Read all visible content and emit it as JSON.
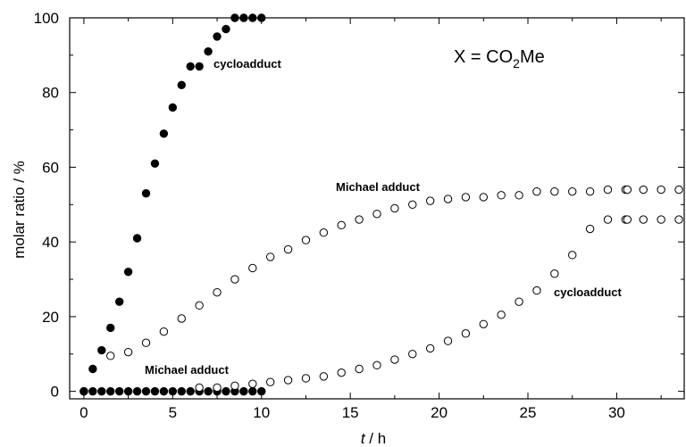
{
  "chart_data": {
    "type": "scatter",
    "title": "",
    "xlabel_italic": "t",
    "xlabel_rest": " / h",
    "ylabel": "molar ratio / %",
    "xlim": [
      -0.8,
      33.8
    ],
    "ylim": [
      -2,
      100
    ],
    "xticks": [
      0,
      5,
      10,
      15,
      20,
      25,
      30
    ],
    "yticks": [
      0,
      20,
      40,
      60,
      80,
      100
    ],
    "formula": {
      "prefix": "X = CO",
      "sub": "2",
      "suffix": "Me"
    },
    "annotations": {
      "cyclo_top": "cycloadduct",
      "michael_top": "Michael adduct",
      "cyclo_bottom": "cycloadduct",
      "michael_bottom": "Michael adduct"
    },
    "series": [
      {
        "marker": "filled",
        "points": [
          [
            0,
            0
          ],
          [
            0.5,
            6
          ],
          [
            1,
            11
          ],
          [
            1.5,
            17
          ],
          [
            2,
            24
          ],
          [
            2.5,
            32
          ],
          [
            3,
            41
          ],
          [
            3.5,
            53
          ],
          [
            4,
            61
          ],
          [
            4.5,
            69
          ],
          [
            5,
            76
          ],
          [
            5.5,
            82
          ],
          [
            6,
            87
          ],
          [
            6.5,
            87
          ],
          [
            7,
            91
          ],
          [
            7.5,
            95
          ],
          [
            8,
            97
          ],
          [
            8.5,
            100
          ],
          [
            9,
            100
          ],
          [
            9.5,
            100
          ],
          [
            10,
            100
          ]
        ]
      },
      {
        "marker": "filled",
        "points": [
          [
            0,
            0
          ],
          [
            0.5,
            0
          ],
          [
            1,
            0
          ],
          [
            1.5,
            0
          ],
          [
            2,
            0
          ],
          [
            2.5,
            0
          ],
          [
            3,
            0
          ],
          [
            3.5,
            0
          ],
          [
            4,
            0
          ],
          [
            4.5,
            0
          ],
          [
            5,
            0
          ],
          [
            5.5,
            0
          ],
          [
            6,
            0
          ],
          [
            6.5,
            0
          ],
          [
            7,
            0
          ],
          [
            7.5,
            0
          ],
          [
            8,
            0
          ],
          [
            8.5,
            0
          ],
          [
            9,
            0
          ],
          [
            9.5,
            0
          ],
          [
            10,
            0
          ]
        ]
      },
      {
        "marker": "open",
        "points": [
          [
            1.5,
            9.5
          ],
          [
            2.5,
            10.5
          ],
          [
            3.5,
            13
          ],
          [
            4.5,
            16
          ],
          [
            5.5,
            19.5
          ],
          [
            6.5,
            23
          ],
          [
            7.5,
            26.5
          ],
          [
            8.5,
            30
          ],
          [
            9.5,
            33
          ],
          [
            10.5,
            36
          ],
          [
            11.5,
            38
          ],
          [
            12.5,
            40.5
          ],
          [
            13.5,
            42.5
          ],
          [
            14.5,
            44.5
          ],
          [
            15.5,
            46
          ],
          [
            16.5,
            47.5
          ],
          [
            17.5,
            49
          ],
          [
            18.5,
            50
          ],
          [
            19.5,
            51
          ],
          [
            20.5,
            51.5
          ],
          [
            21.5,
            52
          ],
          [
            22.5,
            52
          ],
          [
            23.5,
            52.5
          ],
          [
            24.5,
            52.5
          ],
          [
            25.5,
            53.5
          ],
          [
            26.5,
            53.5
          ],
          [
            27.5,
            53.5
          ],
          [
            28.5,
            53.5
          ],
          [
            29.5,
            54
          ],
          [
            30.5,
            54
          ],
          [
            30.6,
            54
          ],
          [
            31.5,
            54
          ],
          [
            32.5,
            54
          ],
          [
            33.5,
            54
          ]
        ]
      },
      {
        "marker": "open",
        "points": [
          [
            6.5,
            1
          ],
          [
            7.5,
            1
          ],
          [
            8.5,
            1.5
          ],
          [
            9.5,
            2
          ],
          [
            10.5,
            2.5
          ],
          [
            11.5,
            3
          ],
          [
            12.5,
            3.5
          ],
          [
            13.5,
            4
          ],
          [
            14.5,
            5
          ],
          [
            15.5,
            6
          ],
          [
            16.5,
            7
          ],
          [
            17.5,
            8.5
          ],
          [
            18.5,
            10
          ],
          [
            19.5,
            11.5
          ],
          [
            20.5,
            13.5
          ],
          [
            21.5,
            15.5
          ],
          [
            22.5,
            18
          ],
          [
            23.5,
            20.5
          ],
          [
            24.5,
            24
          ],
          [
            25.5,
            27
          ],
          [
            26.5,
            31.5
          ],
          [
            27.5,
            36.5
          ],
          [
            28.5,
            43.5
          ],
          [
            29.5,
            46
          ],
          [
            30.5,
            46
          ],
          [
            30.6,
            46
          ],
          [
            31.5,
            46
          ],
          [
            32.5,
            46
          ],
          [
            33.5,
            46
          ]
        ]
      }
    ]
  }
}
